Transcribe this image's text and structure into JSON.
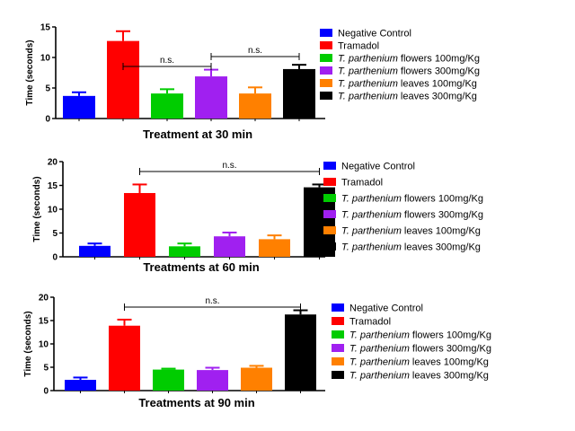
{
  "chart_data": [
    {
      "type": "bar",
      "xlabel": "Treatment at 30 min",
      "ylabel": "Time (seconds)",
      "ylim": [
        0,
        15
      ],
      "yticks": [
        0,
        5,
        10,
        15
      ],
      "grid": false,
      "legend_placement": "right",
      "categories": [
        "Negative Control",
        "Tramadol",
        "T. parthenium flowers 100mg/Kg",
        "T. parthenium flowers 300mg/Kg",
        "T. parthenium leaves 100mg/Kg",
        "T. parthenium leaves 300mg/Kg"
      ],
      "series": [
        {
          "values": [
            3.7,
            12.7,
            4.1,
            6.9,
            4.1,
            8.1
          ],
          "errors": [
            0.6,
            1.6,
            0.7,
            1.1,
            1.0,
            0.7
          ]
        }
      ],
      "annotations": [
        {
          "text": "n.s.",
          "from": 3,
          "to": 5
        },
        {
          "text": "n.s.",
          "from": 1,
          "to": 3
        }
      ]
    },
    {
      "type": "bar",
      "xlabel": "Treatments at 60 min",
      "ylabel": "Time (seconds)",
      "ylim": [
        0,
        20
      ],
      "yticks": [
        0,
        5,
        10,
        15,
        20
      ],
      "grid": false,
      "legend_placement": "right",
      "categories": [
        "Negative Control",
        "Tramadol",
        "T. parthenium flowers 100mg/Kg",
        "T. parthenium flowers 300mg/Kg",
        "T. parthenium leaves 100mg/Kg",
        "T. parthenium leaves 300mg/Kg"
      ],
      "series": [
        {
          "values": [
            2.3,
            13.4,
            2.2,
            4.3,
            3.7,
            14.6
          ],
          "errors": [
            0.5,
            1.8,
            0.6,
            0.8,
            0.8,
            0.6
          ]
        }
      ],
      "annotations": [
        {
          "text": "n.s.",
          "from": 1,
          "to": 5
        }
      ]
    },
    {
      "type": "bar",
      "xlabel": "Treatments at 90 min",
      "ylabel": "Time (seconds)",
      "ylim": [
        0,
        20
      ],
      "yticks": [
        0,
        5,
        10,
        15,
        20
      ],
      "grid": false,
      "legend_placement": "right",
      "categories": [
        "Negative Control",
        "Tramadol",
        "T. parthenium flowers 100mg/Kg",
        "T. parthenium flowers 300mg/Kg",
        "T. parthenium leaves 100mg/Kg",
        "T. parthenium leaves 300mg/Kg"
      ],
      "series": [
        {
          "values": [
            2.3,
            13.9,
            4.5,
            4.4,
            4.9,
            16.3
          ],
          "errors": [
            0.5,
            1.3,
            0.2,
            0.5,
            0.4,
            0.9
          ]
        }
      ],
      "annotations": [
        {
          "text": "n.s.",
          "from": 1,
          "to": 5
        }
      ]
    }
  ],
  "legend": [
    {
      "italic": "",
      "text": "Negative Control",
      "color": "#0000ff"
    },
    {
      "italic": "",
      "text": "Tramadol",
      "color": "#ff0000"
    },
    {
      "italic": "T. parthenium",
      "text": " flowers 100mg/Kg",
      "color": "#00cc00"
    },
    {
      "italic": "T. parthenium",
      "text": " flowers 300mg/Kg",
      "color": "#a020f0"
    },
    {
      "italic": "T. parthenium",
      "text": " leaves 100mg/Kg",
      "color": "#ff8000"
    },
    {
      "italic": "T. parthenium",
      "text": " leaves 300mg/Kg",
      "color": "#000000"
    }
  ],
  "colors": [
    "#0000ff",
    "#ff0000",
    "#00cc00",
    "#a020f0",
    "#ff8000",
    "#000000"
  ]
}
